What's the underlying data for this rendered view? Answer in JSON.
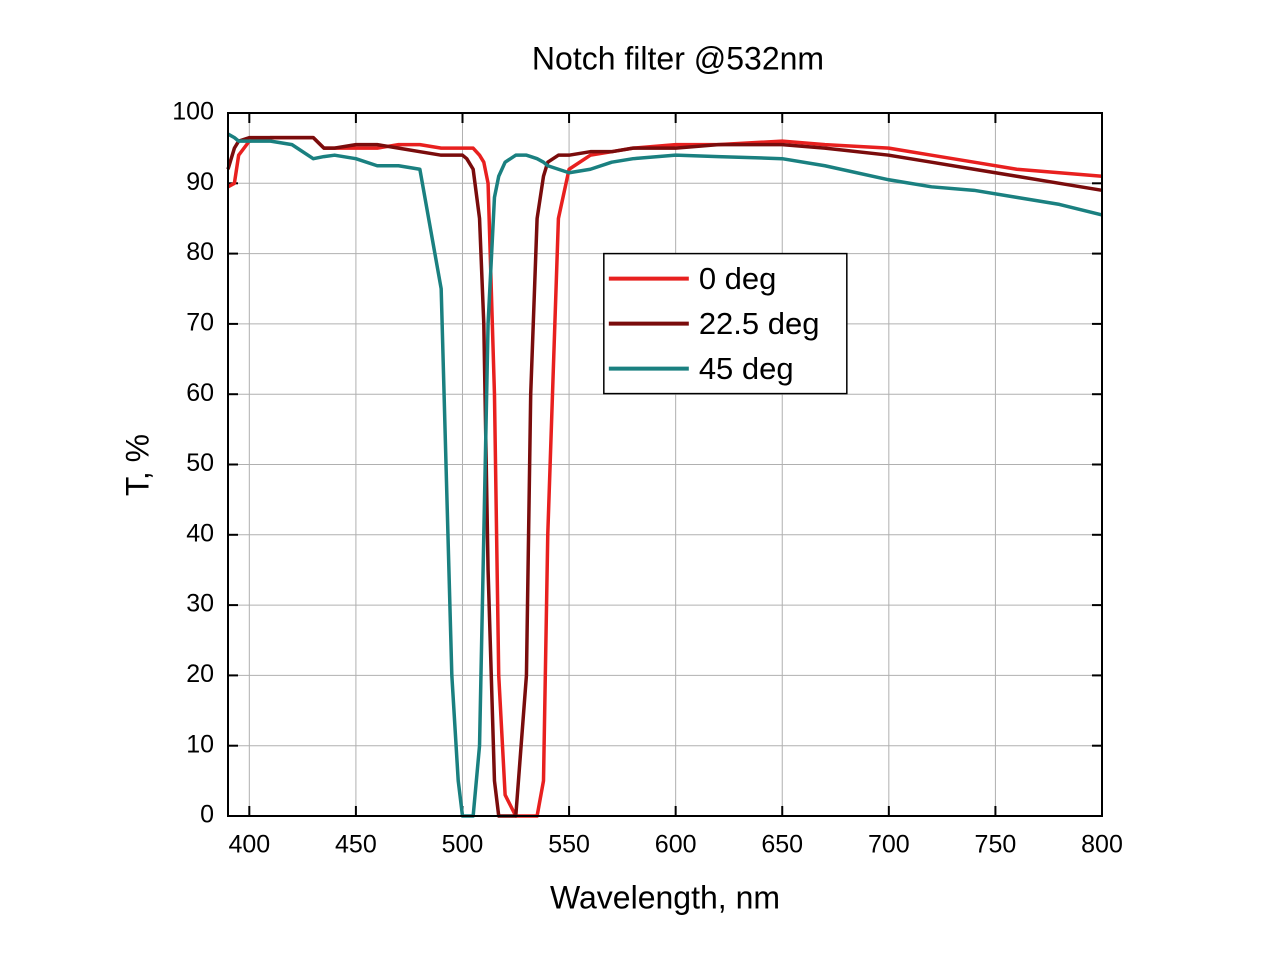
{
  "chart_data": {
    "type": "line",
    "title": "Notch filter @532nm",
    "x_label": "Wavelength, nm",
    "y_label": "T, %",
    "x": [
      390,
      393,
      395,
      400,
      410,
      420,
      430,
      435,
      440,
      450,
      460,
      470,
      480,
      490,
      495,
      498,
      500,
      502,
      505,
      508,
      510,
      512,
      515,
      517,
      520,
      525,
      530,
      532,
      535,
      538,
      540,
      545,
      550,
      560,
      570,
      580,
      600,
      620,
      650,
      670,
      700,
      720,
      740,
      760,
      780,
      800
    ],
    "series": [
      {
        "name": "0 deg",
        "color": "#e8201f",
        "values": [
          89.5,
          90,
          94,
          96,
          96.5,
          96.5,
          96.5,
          95,
          95,
          95,
          95,
          95.5,
          95.5,
          95,
          95,
          95,
          95,
          95,
          95,
          94,
          93,
          90,
          60,
          20,
          3,
          0,
          0,
          0,
          0,
          5,
          40,
          85,
          92,
          94,
          94.5,
          95,
          95.5,
          95.5,
          96,
          95.5,
          95,
          94,
          93,
          92,
          91.5,
          91
        ]
      },
      {
        "name": "22.5 deg",
        "color": "#7a0c0c",
        "values": [
          92,
          95,
          96,
          96.5,
          96.5,
          96.5,
          96.5,
          95,
          95,
          95.5,
          95.5,
          95,
          94.5,
          94,
          94,
          94,
          94,
          93.5,
          92,
          85,
          70,
          35,
          5,
          0,
          0,
          0,
          20,
          60,
          85,
          91,
          93,
          94,
          94,
          94.5,
          94.5,
          95,
          95,
          95.5,
          95.5,
          95,
          94,
          93,
          92,
          91,
          90,
          89
        ]
      },
      {
        "name": "45 deg",
        "color": "#1a8080",
        "values": [
          97,
          96.5,
          96,
          96,
          96,
          95.5,
          93.5,
          93.8,
          94,
          93.5,
          92.5,
          92.5,
          92,
          75,
          20,
          5,
          0,
          0,
          0,
          10,
          40,
          70,
          88,
          91,
          93,
          94,
          94,
          93.8,
          93.5,
          93,
          92.5,
          92,
          91.5,
          92,
          93,
          93.5,
          94,
          93.8,
          93.5,
          92.5,
          90.5,
          89.5,
          89,
          88,
          87,
          85.5
        ]
      }
    ],
    "xlim": [
      390,
      800
    ],
    "ylim": [
      0,
      100
    ],
    "xticks": [
      400,
      450,
      500,
      550,
      600,
      650,
      700,
      750,
      800
    ],
    "yticks": [
      0,
      10,
      20,
      30,
      40,
      50,
      60,
      70,
      80,
      90,
      100
    ],
    "grid": true,
    "legend_position": "center"
  }
}
